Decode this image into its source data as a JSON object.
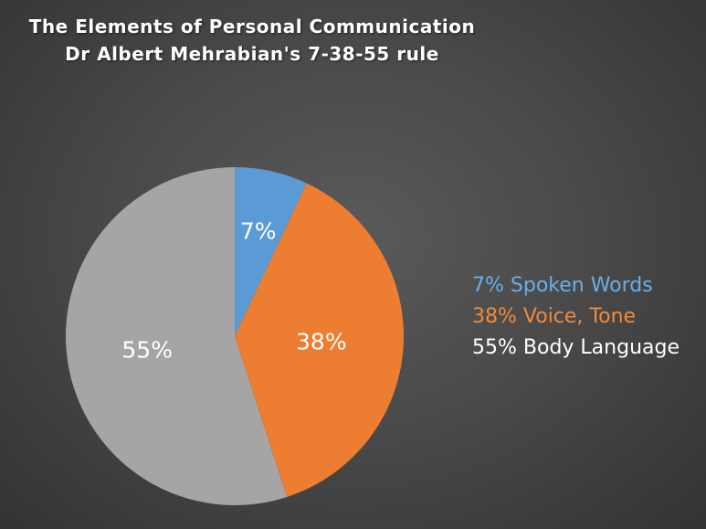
{
  "chart_data": {
    "type": "pie",
    "title": "The Elements of Personal Communication",
    "subtitle": "Dr Albert Mehrabian's 7-38-55 rule",
    "slices": [
      {
        "label": "7%",
        "value": 7,
        "legend": "7% Spoken Words",
        "color": "#5b9bd5",
        "legend_color": "#6aaee8"
      },
      {
        "label": "38%",
        "value": 38,
        "legend": "38% Voice, Tone",
        "color": "#ed7d31",
        "legend_color": "#f08a3c"
      },
      {
        "label": "55%",
        "value": 55,
        "legend": "55% Body Language",
        "color": "#a5a5a5",
        "legend_color": "#ffffff"
      }
    ],
    "start_angle": "12 o'clock",
    "direction": "clockwise",
    "legend_position": "right"
  }
}
